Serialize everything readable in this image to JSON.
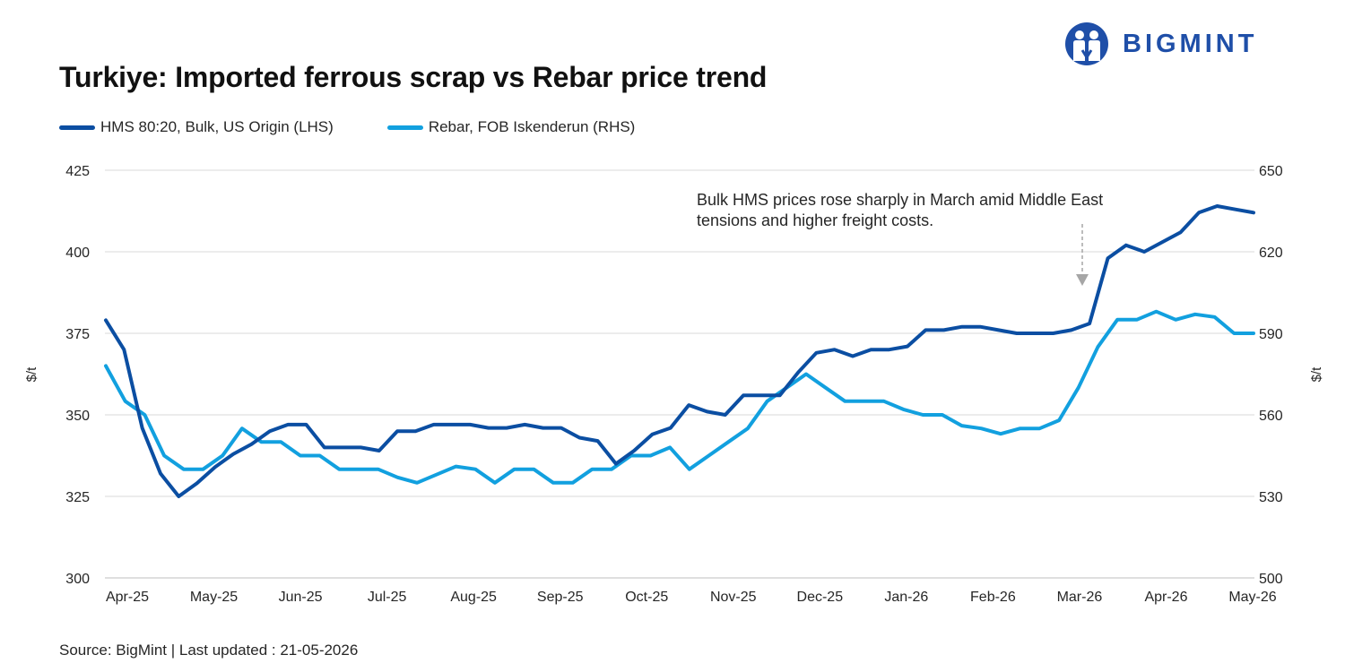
{
  "title": "Turkiye: Imported ferrous scrap vs Rebar price trend",
  "brand": {
    "name": "BIGMINT",
    "color": "#1f4fa8",
    "icon": "bigmint-logo-icon"
  },
  "source": "Source: BigMint | Last updated : 21-05-2026",
  "annotation": {
    "line1": "Bulk HMS prices rose sharply in March amid Middle East",
    "line2": "tensions and higher freight costs."
  },
  "chart_data": {
    "type": "line",
    "title": "Turkiye: Imported ferrous scrap vs Rebar price trend",
    "x_tick_labels": [
      "Apr-25",
      "May-25",
      "Jun-25",
      "Jul-25",
      "Aug-25",
      "Sep-25",
      "Oct-25",
      "Nov-25",
      "Dec-25",
      "Jan-26",
      "Feb-26",
      "Mar-26",
      "Apr-26",
      "May-26"
    ],
    "ylabel_left": "$/t",
    "ylabel_right": "$/t",
    "ylim_left": [
      300,
      425
    ],
    "ylim_right": [
      500,
      650
    ],
    "yticks_left": [
      300,
      325,
      350,
      375,
      400,
      425
    ],
    "yticks_right": [
      500,
      530,
      560,
      590,
      620,
      650
    ],
    "grid": true,
    "legend_position": "top-left",
    "series": [
      {
        "name": "HMS 80:20, Bulk, US Origin (LHS)",
        "axis": "left",
        "color": "#0b4ea2",
        "values": [
          379,
          370,
          346,
          332,
          325,
          329,
          334,
          338,
          341,
          345,
          347,
          347,
          340,
          340,
          340,
          339,
          345,
          345,
          347,
          347,
          347,
          346,
          346,
          347,
          346,
          346,
          343,
          342,
          335,
          339,
          344,
          346,
          353,
          351,
          350,
          356,
          356,
          356,
          363,
          369,
          370,
          368,
          370,
          370,
          371,
          376,
          376,
          377,
          377,
          376,
          375,
          375,
          375,
          376,
          378,
          398,
          402,
          400,
          403,
          406,
          412,
          414,
          413,
          412
        ]
      },
      {
        "name": "Rebar, FOB Iskenderun (RHS)",
        "axis": "right",
        "color": "#12a0df",
        "values": [
          578,
          565,
          560,
          545,
          540,
          540,
          545,
          555,
          550,
          550,
          545,
          545,
          540,
          540,
          540,
          537,
          535,
          538,
          541,
          540,
          535,
          540,
          540,
          535,
          535,
          540,
          540,
          545,
          545,
          548,
          540,
          545,
          550,
          555,
          565,
          570,
          575,
          570,
          565,
          565,
          565,
          562,
          560,
          560,
          556,
          555,
          553,
          555,
          555,
          558,
          570,
          585,
          595,
          595,
          598,
          595,
          597,
          596,
          590,
          590
        ]
      }
    ],
    "rebar_start_index": 0,
    "annotations": [
      "Bulk HMS prices rose sharply in March amid Middle East tensions and higher freight costs."
    ]
  }
}
